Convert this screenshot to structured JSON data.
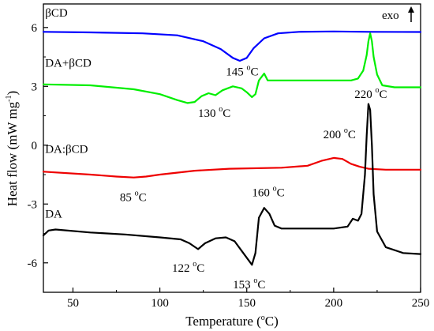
{
  "chart_data": {
    "type": "line",
    "xlabel_main": "Temperature (",
    "xlabel_sup": "o",
    "xlabel_tail": "C)",
    "ylabel_main": "Heat flow (mW mg",
    "ylabel_sup": "-1",
    "ylabel_tail": ")",
    "xlim": [
      33,
      250
    ],
    "ylim": [
      -7.5,
      7.2
    ],
    "x_ticks": [
      50,
      100,
      150,
      200,
      250
    ],
    "y_ticks": [
      6,
      3,
      0,
      -3,
      -6
    ],
    "exo_label": "exo",
    "series": [
      {
        "name": "βCD",
        "color": "#0000ff",
        "points": [
          [
            33,
            5.78
          ],
          [
            60,
            5.75
          ],
          [
            90,
            5.7
          ],
          [
            110,
            5.6
          ],
          [
            125,
            5.3
          ],
          [
            135,
            4.9
          ],
          [
            142,
            4.45
          ],
          [
            146,
            4.3
          ],
          [
            150,
            4.45
          ],
          [
            154,
            4.95
          ],
          [
            160,
            5.45
          ],
          [
            168,
            5.7
          ],
          [
            180,
            5.78
          ],
          [
            200,
            5.8
          ],
          [
            220,
            5.78
          ],
          [
            250,
            5.77
          ]
        ]
      },
      {
        "name": "DA+βCD",
        "color": "#00ee00",
        "points": [
          [
            33,
            3.1
          ],
          [
            60,
            3.05
          ],
          [
            85,
            2.85
          ],
          [
            100,
            2.6
          ],
          [
            110,
            2.3
          ],
          [
            116,
            2.15
          ],
          [
            120,
            2.2
          ],
          [
            124,
            2.5
          ],
          [
            128,
            2.65
          ],
          [
            132,
            2.55
          ],
          [
            136,
            2.8
          ],
          [
            142,
            3.0
          ],
          [
            147,
            2.9
          ],
          [
            150,
            2.7
          ],
          [
            153,
            2.45
          ],
          [
            155,
            2.6
          ],
          [
            157,
            3.3
          ],
          [
            160,
            3.65
          ],
          [
            162,
            3.3
          ],
          [
            165,
            3.3
          ],
          [
            180,
            3.3
          ],
          [
            210,
            3.3
          ],
          [
            214,
            3.4
          ],
          [
            217,
            3.8
          ],
          [
            219,
            4.6
          ],
          [
            220,
            5.3
          ],
          [
            221,
            5.7
          ],
          [
            222,
            5.3
          ],
          [
            223,
            4.5
          ],
          [
            225,
            3.6
          ],
          [
            228,
            3.05
          ],
          [
            235,
            2.95
          ],
          [
            250,
            2.95
          ]
        ]
      },
      {
        "name": "DA:βCD",
        "color": "#ee0000",
        "points": [
          [
            33,
            -1.35
          ],
          [
            60,
            -1.5
          ],
          [
            75,
            -1.6
          ],
          [
            85,
            -1.65
          ],
          [
            92,
            -1.6
          ],
          [
            100,
            -1.5
          ],
          [
            120,
            -1.3
          ],
          [
            140,
            -1.2
          ],
          [
            170,
            -1.15
          ],
          [
            185,
            -1.05
          ],
          [
            193,
            -0.8
          ],
          [
            200,
            -0.65
          ],
          [
            205,
            -0.7
          ],
          [
            210,
            -0.95
          ],
          [
            215,
            -1.1
          ],
          [
            220,
            -1.2
          ],
          [
            230,
            -1.25
          ],
          [
            250,
            -1.25
          ]
        ]
      },
      {
        "name": "DA",
        "color": "#000000",
        "points": [
          [
            33,
            -4.6
          ],
          [
            36,
            -4.35
          ],
          [
            40,
            -4.3
          ],
          [
            60,
            -4.45
          ],
          [
            80,
            -4.55
          ],
          [
            100,
            -4.7
          ],
          [
            112,
            -4.8
          ],
          [
            117,
            -5.0
          ],
          [
            122,
            -5.3
          ],
          [
            126,
            -5.0
          ],
          [
            132,
            -4.75
          ],
          [
            138,
            -4.7
          ],
          [
            143,
            -4.9
          ],
          [
            148,
            -5.5
          ],
          [
            153,
            -6.1
          ],
          [
            155,
            -5.5
          ],
          [
            157,
            -3.7
          ],
          [
            160,
            -3.2
          ],
          [
            163,
            -3.5
          ],
          [
            166,
            -4.1
          ],
          [
            170,
            -4.25
          ],
          [
            180,
            -4.25
          ],
          [
            200,
            -4.25
          ],
          [
            208,
            -4.15
          ],
          [
            211,
            -3.75
          ],
          [
            214,
            -3.85
          ],
          [
            216,
            -3.5
          ],
          [
            218,
            -1.5
          ],
          [
            219,
            0.5
          ],
          [
            220,
            2.1
          ],
          [
            221,
            1.8
          ],
          [
            222,
            0.0
          ],
          [
            223,
            -2.5
          ],
          [
            225,
            -4.4
          ],
          [
            230,
            -5.2
          ],
          [
            240,
            -5.5
          ],
          [
            250,
            -5.55
          ]
        ]
      }
    ],
    "annotations": [
      {
        "value": "145",
        "unit_sup": "o",
        "unit": "C",
        "x": 138,
        "y": 3.55
      },
      {
        "value": "130",
        "unit_sup": "o",
        "unit": "C",
        "x": 122,
        "y": 1.45
      },
      {
        "value": "220",
        "unit_sup": "o",
        "unit": "C",
        "x": 212,
        "y": 2.4
      },
      {
        "value": "200",
        "unit_sup": "o",
        "unit": "C",
        "x": 194,
        "y": 0.35
      },
      {
        "value": "85",
        "unit_sup": "o",
        "unit": "C",
        "x": 77,
        "y": -2.85
      },
      {
        "value": "160",
        "unit_sup": "o",
        "unit": "C",
        "x": 153,
        "y": -2.6
      },
      {
        "value": "122",
        "unit_sup": "o",
        "unit": "C",
        "x": 107,
        "y": -6.45
      },
      {
        "value": "153",
        "unit_sup": "o",
        "unit": "C",
        "x": 142,
        "y": -7.3
      }
    ],
    "series_labels": [
      {
        "text": "βCD",
        "x": 34,
        "y": 6.55
      },
      {
        "text": "DA+βCD",
        "x": 34,
        "y": 4.0
      },
      {
        "text": "DA:βCD",
        "x": 34,
        "y": -0.4
      },
      {
        "text": "DA",
        "x": 34,
        "y": -3.7
      }
    ]
  }
}
